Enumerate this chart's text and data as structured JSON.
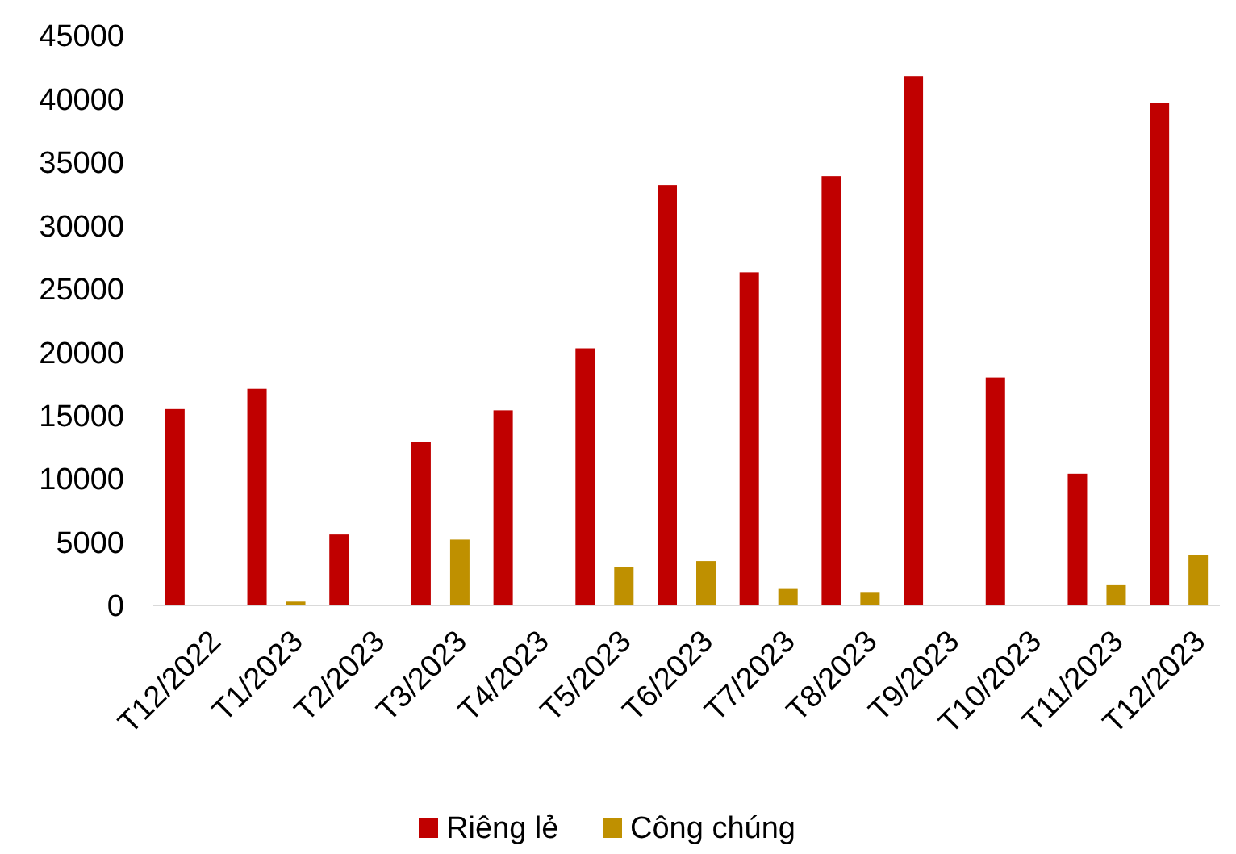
{
  "chart_data": {
    "type": "bar",
    "categories": [
      "T12/2022",
      "T1/2023",
      "T2/2023",
      "T3/2023",
      "T4/2023",
      "T5/2023",
      "T6/2023",
      "T7/2023",
      "T8/2023",
      "T9/2023",
      "T10/2023",
      "T11/2023",
      "T12/2023"
    ],
    "series": [
      {
        "name": "Riêng lẻ",
        "color": "#c00000",
        "values": [
          15500,
          17100,
          5600,
          12900,
          15400,
          20300,
          33200,
          26300,
          33900,
          41800,
          18000,
          10400,
          39700
        ]
      },
      {
        "name": "Công chúng",
        "color": "#bf9000",
        "values": [
          0,
          300,
          0,
          5200,
          0,
          3000,
          3500,
          1300,
          1000,
          0,
          0,
          1600,
          4000
        ]
      }
    ],
    "ylim": [
      0,
      45000
    ],
    "yticks": [
      0,
      5000,
      10000,
      15000,
      20000,
      25000,
      30000,
      35000,
      40000,
      45000
    ],
    "grid": false,
    "legend": "bottom"
  }
}
